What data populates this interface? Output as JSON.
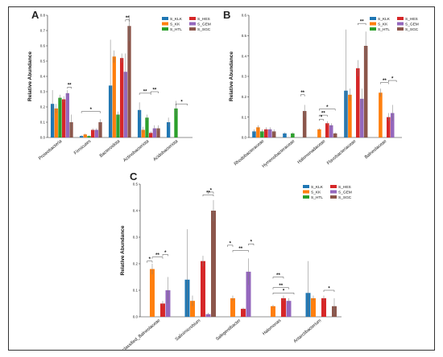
{
  "figure": {
    "colors": {
      "S_KLK": "#1f77b4",
      "S_KK": "#ff7f0e",
      "S_HTL": "#2ca02c",
      "S_HES": "#d62728",
      "S_GEM": "#9467bd",
      "S_SGC": "#8c564b"
    },
    "series_names": [
      "S_KLK",
      "S_KK",
      "S_HTL",
      "S_HES",
      "S_GEM",
      "S_SGC"
    ]
  },
  "chart_data": [
    {
      "panel": "A",
      "type": "bar",
      "ylabel": "Relative Abundance",
      "ylim": [
        0,
        0.8
      ],
      "yticks": [
        "0.0",
        "0.1",
        "0.2",
        "0.3",
        "0.4",
        "0.5",
        "0.6",
        "0.7",
        "0.8"
      ],
      "categories": [
        "Proteobacteria",
        "Firmicutes",
        "Bacteroidota",
        "Actinobacteriota",
        "Acidobacteriota"
      ],
      "series": [
        {
          "name": "S_KLK",
          "values": [
            0.22,
            0.01,
            0.34,
            0.18,
            0.1
          ],
          "err": [
            0.09,
            0.005,
            0.3,
            0.05,
            0.03
          ]
        },
        {
          "name": "S_KK",
          "values": [
            0.19,
            0.02,
            0.53,
            0.05,
            0.0
          ],
          "err": [
            0.03,
            0.005,
            0.04,
            0.02,
            0.0
          ]
        },
        {
          "name": "S_HTL",
          "values": [
            0.26,
            0.01,
            0.15,
            0.13,
            0.19
          ],
          "err": [
            0.02,
            0.004,
            0.02,
            0.02,
            0.05
          ]
        },
        {
          "name": "S_HES",
          "values": [
            0.25,
            0.05,
            0.52,
            0.03,
            0.0
          ],
          "err": [
            0.02,
            0.01,
            0.03,
            0.01,
            0.0
          ]
        },
        {
          "name": "S_GEM",
          "values": [
            0.29,
            0.05,
            0.43,
            0.06,
            0.0
          ],
          "err": [
            0.02,
            0.01,
            0.12,
            0.02,
            0.0
          ]
        },
        {
          "name": "S_SGC",
          "values": [
            0.1,
            0.1,
            0.73,
            0.06,
            0.0
          ],
          "err": [
            0.05,
            0.02,
            0.1,
            0.02,
            0.0
          ]
        }
      ],
      "annotations": [
        {
          "label": "**",
          "cat": 0,
          "s1": 4,
          "s2": 5,
          "y": 0.33
        },
        {
          "label": "*",
          "cat": 1,
          "s1": 0,
          "s2": 5,
          "y": 0.17
        },
        {
          "label": "**",
          "cat": 2,
          "s1": 4,
          "s2": 5,
          "y": 0.77
        },
        {
          "label": "**",
          "cat": 3,
          "s1": 0,
          "s2": 3,
          "y": 0.29
        },
        {
          "label": "**",
          "cat": 3,
          "s1": 3,
          "s2": 5,
          "y": 0.3
        },
        {
          "label": "*",
          "cat": 4,
          "s1": 2,
          "s2": 5,
          "y": 0.22
        }
      ]
    },
    {
      "panel": "B",
      "type": "bar",
      "ylabel": "Relative Abundance",
      "ylim": [
        0,
        0.6
      ],
      "yticks": [
        "0.0",
        "0.1",
        "0.2",
        "0.3",
        "0.4",
        "0.5",
        "0.6"
      ],
      "categories": [
        "Rhodobacteraceae",
        "Hymenobacteraceae",
        "Halomonadaceae",
        "Flavobacteriaceae",
        "Balneolaceae"
      ],
      "series": [
        {
          "name": "S_KLK",
          "values": [
            0.03,
            0.02,
            0.0,
            0.23,
            0.0
          ],
          "err": [
            0.01,
            0.005,
            0.0,
            0.3,
            0.0
          ]
        },
        {
          "name": "S_KK",
          "values": [
            0.05,
            0.0,
            0.04,
            0.21,
            0.22
          ],
          "err": [
            0.01,
            0.0,
            0.005,
            0.03,
            0.02
          ]
        },
        {
          "name": "S_HTL",
          "values": [
            0.03,
            0.02,
            0.0,
            0.0,
            0.0
          ],
          "err": [
            0.01,
            0.005,
            0.0,
            0.0,
            0.0
          ]
        },
        {
          "name": "S_HES",
          "values": [
            0.04,
            0.0,
            0.07,
            0.34,
            0.1
          ],
          "err": [
            0.01,
            0.0,
            0.01,
            0.04,
            0.02
          ]
        },
        {
          "name": "S_GEM",
          "values": [
            0.04,
            0.0,
            0.06,
            0.19,
            0.12
          ],
          "err": [
            0.01,
            0.0,
            0.01,
            0.05,
            0.04
          ]
        },
        {
          "name": "S_SGC",
          "values": [
            0.03,
            0.13,
            0.02,
            0.45,
            0.0
          ],
          "err": [
            0.01,
            0.03,
            0.005,
            0.07,
            0.0
          ]
        }
      ],
      "annotations": [
        {
          "label": "**",
          "cat": 1,
          "s1": 4,
          "s2": 5,
          "y": 0.21
        },
        {
          "label": "*",
          "cat": 2,
          "s1": 1,
          "s2": 5,
          "y": 0.14
        },
        {
          "label": "**",
          "cat": 2,
          "s1": 1,
          "s2": 3,
          "y": 0.11
        },
        {
          "label": "*",
          "cat": 2,
          "s1": 1,
          "s2": 2,
          "y": 0.09
        },
        {
          "label": "**",
          "cat": 3,
          "s1": 3,
          "s2": 5,
          "y": 0.56
        },
        {
          "label": "**",
          "cat": 4,
          "s1": 1,
          "s2": 3,
          "y": 0.27
        },
        {
          "label": "*",
          "cat": 4,
          "s1": 3,
          "s2": 5,
          "y": 0.28
        }
      ]
    },
    {
      "panel": "C",
      "type": "bar",
      "ylabel": "Relative Abundance",
      "ylim": [
        0,
        0.5
      ],
      "yticks": [
        "0.0",
        "0.1",
        "0.2",
        "0.3",
        "0.4",
        "0.5"
      ],
      "categories": [
        "Unclassified_Balneolaceae",
        "Salinimicrobium",
        "Salegentibacter",
        "Halomonas",
        "Antarctibacterium"
      ],
      "series": [
        {
          "name": "S_KLK",
          "values": [
            0.0,
            0.14,
            0.0,
            0.0,
            0.09
          ],
          "err": [
            0.0,
            0.19,
            0.0,
            0.0,
            0.12
          ]
        },
        {
          "name": "S_KK",
          "values": [
            0.18,
            0.06,
            0.07,
            0.04,
            0.07
          ],
          "err": [
            0.02,
            0.02,
            0.01,
            0.005,
            0.01
          ]
        },
        {
          "name": "S_HTL",
          "values": [
            0.0,
            0.0,
            0.0,
            0.0,
            0.0
          ],
          "err": [
            0.0,
            0.0,
            0.0,
            0.0,
            0.0
          ]
        },
        {
          "name": "S_HES",
          "values": [
            0.05,
            0.21,
            0.03,
            0.07,
            0.07
          ],
          "err": [
            0.01,
            0.02,
            0.005,
            0.01,
            0.01
          ]
        },
        {
          "name": "S_GEM",
          "values": [
            0.1,
            0.01,
            0.17,
            0.06,
            0.0
          ],
          "err": [
            0.05,
            0.005,
            0.05,
            0.01,
            0.0
          ]
        },
        {
          "name": "S_SGC",
          "values": [
            0.0,
            0.4,
            0.0,
            0.0,
            0.04
          ],
          "err": [
            0.0,
            0.04,
            0.0,
            0.0,
            0.03
          ]
        }
      ],
      "annotations": [
        {
          "label": "*",
          "cat": 0,
          "s1": 0,
          "s2": 1,
          "y": 0.21
        },
        {
          "label": "**",
          "cat": 0,
          "s1": 1,
          "s2": 3,
          "y": 0.225
        },
        {
          "label": "*",
          "cat": 0,
          "s1": 3,
          "s2": 4,
          "y": 0.235
        },
        {
          "label": "**",
          "cat": 1,
          "s1": 3,
          "s2": 5,
          "y": 0.46
        },
        {
          "label": "*",
          "cat": 1,
          "s1": 4,
          "s2": 5,
          "y": 0.47
        },
        {
          "label": "*",
          "cat": 2,
          "s1": 0,
          "s2": 1,
          "y": 0.27
        },
        {
          "label": "**",
          "cat": 2,
          "s1": 1,
          "s2": 4,
          "y": 0.25
        },
        {
          "label": "*",
          "cat": 2,
          "s1": 4,
          "s2": 5,
          "y": 0.275
        },
        {
          "label": "**",
          "cat": 3,
          "s1": 1,
          "s2": 3,
          "y": 0.15
        },
        {
          "label": "**",
          "cat": 3,
          "s1": 1,
          "s2": 4,
          "y": 0.11
        },
        {
          "label": "*",
          "cat": 3,
          "s1": 1,
          "s2": 5,
          "y": 0.09
        },
        {
          "label": "*",
          "cat": 4,
          "s1": 3,
          "s2": 5,
          "y": 0.1
        }
      ]
    }
  ]
}
